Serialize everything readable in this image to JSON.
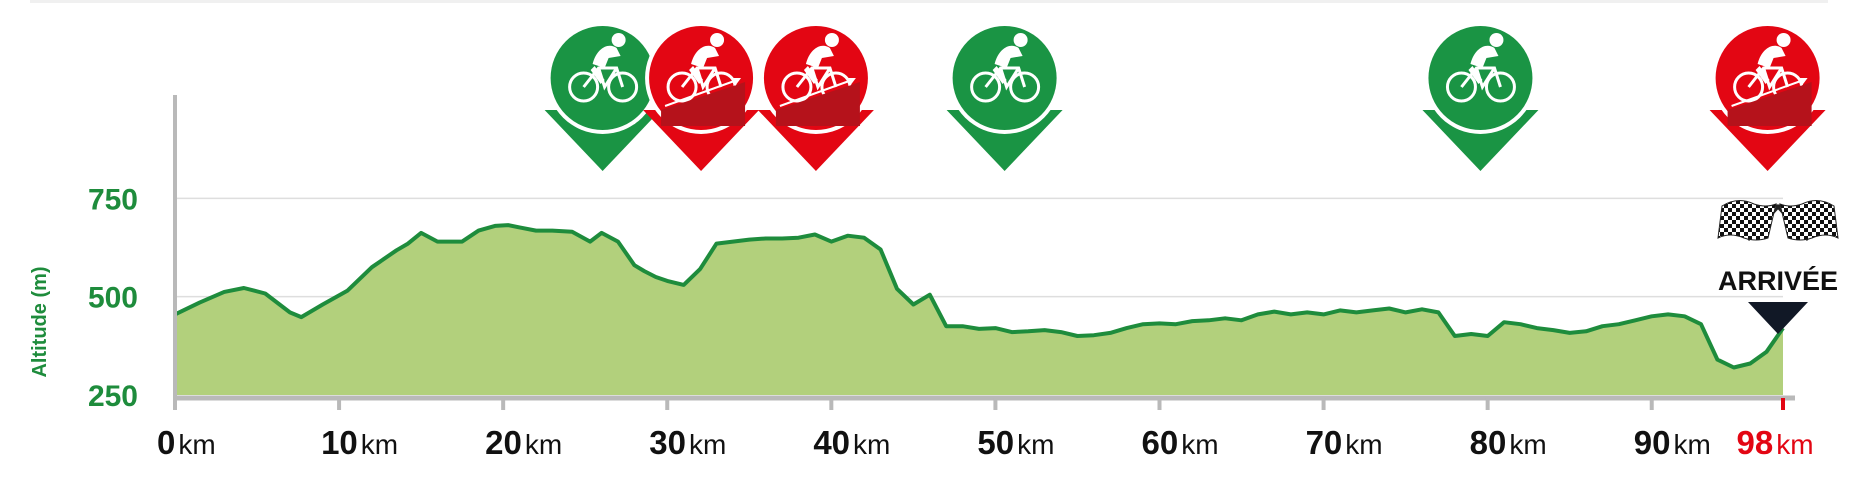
{
  "colors": {
    "profile_fill": "#b2d07c",
    "profile_line": "#1e8c3c",
    "axis_green": "#1e8c3c",
    "sprint_green": "#1a9444",
    "climb_red": "#e30613",
    "finish_red": "#e30613",
    "axis_gray": "#b9b9b9",
    "grid": "#dedede",
    "text_dark": "#111111"
  },
  "chart_data": {
    "type": "area",
    "title": "",
    "xlabel": "",
    "ylabel": "Altitude (m)",
    "x_unit": "km",
    "xlim": [
      0,
      98
    ],
    "ylim": [
      250,
      1000
    ],
    "yticks": [
      {
        "value": 250,
        "label": "250"
      },
      {
        "value": 500,
        "label": "500"
      },
      {
        "value": 750,
        "label": "750"
      }
    ],
    "xticks": [
      {
        "value": 0,
        "label": "0",
        "unit": "km",
        "finish": false
      },
      {
        "value": 10,
        "label": "10",
        "unit": "km",
        "finish": false
      },
      {
        "value": 20,
        "label": "20",
        "unit": "km",
        "finish": false
      },
      {
        "value": 30,
        "label": "30",
        "unit": "km",
        "finish": false
      },
      {
        "value": 40,
        "label": "40",
        "unit": "km",
        "finish": false
      },
      {
        "value": 50,
        "label": "50",
        "unit": "km",
        "finish": false
      },
      {
        "value": 60,
        "label": "60",
        "unit": "km",
        "finish": false
      },
      {
        "value": 70,
        "label": "70",
        "unit": "km",
        "finish": false
      },
      {
        "value": 80,
        "label": "80",
        "unit": "km",
        "finish": false
      },
      {
        "value": 90,
        "label": "90",
        "unit": "km",
        "finish": false
      },
      {
        "value": 98,
        "label": "98",
        "unit": "km",
        "finish": true
      }
    ],
    "grid": true,
    "series": [
      {
        "x": [
          0,
          1.5,
          3,
          4.2,
          5.5,
          7,
          7.7,
          9,
          10.5,
          12,
          13.5,
          14.2,
          15,
          16,
          17.5,
          18.5,
          19.5,
          20.3,
          21,
          22,
          23,
          24.2,
          25.3,
          26,
          27,
          28,
          28.6,
          29.3,
          30,
          31,
          32,
          33,
          34,
          35,
          36,
          37,
          38,
          39,
          40,
          41,
          42,
          43,
          44,
          45,
          46,
          47,
          48,
          49,
          50,
          51,
          52,
          53,
          54,
          55,
          56,
          57,
          58,
          59,
          60,
          61,
          62,
          63,
          64,
          65,
          66,
          67,
          68,
          69,
          70,
          71,
          72,
          73,
          74,
          75,
          76,
          77,
          78,
          79,
          80,
          81,
          82,
          83,
          84,
          85,
          86,
          87,
          88,
          89,
          90,
          91,
          92,
          93,
          94,
          95,
          96,
          97,
          98
        ],
        "y": [
          455,
          485,
          512,
          522,
          508,
          460,
          448,
          480,
          515,
          575,
          618,
          635,
          662,
          640,
          640,
          668,
          680,
          682,
          676,
          668,
          668,
          665,
          640,
          662,
          640,
          580,
          565,
          550,
          540,
          530,
          570,
          635,
          640,
          645,
          648,
          648,
          650,
          658,
          640,
          655,
          650,
          620,
          520,
          480,
          505,
          425,
          425,
          418,
          420,
          410,
          412,
          415,
          410,
          400,
          402,
          408,
          420,
          430,
          432,
          430,
          438,
          440,
          445,
          440,
          455,
          462,
          455,
          460,
          455,
          465,
          460,
          465,
          470,
          460,
          468,
          460,
          400,
          405,
          400,
          435,
          430,
          420,
          415,
          408,
          412,
          425,
          430,
          440,
          450,
          455,
          450,
          430,
          340,
          320,
          330,
          360,
          420
        ]
      }
    ],
    "markers": [
      {
        "type": "sprint",
        "km": 26,
        "color": "#1a9444",
        "icon": "cyclist-icon"
      },
      {
        "type": "climb",
        "km": 32,
        "color": "#e30613",
        "icon": "cyclist-climb-icon"
      },
      {
        "type": "climb",
        "km": 39,
        "color": "#e30613",
        "icon": "cyclist-climb-icon"
      },
      {
        "type": "sprint",
        "km": 50.5,
        "color": "#1a9444",
        "icon": "cyclist-icon"
      },
      {
        "type": "sprint",
        "km": 79.5,
        "color": "#1a9444",
        "icon": "cyclist-icon"
      },
      {
        "type": "climb",
        "km": 97,
        "color": "#e30613",
        "icon": "cyclist-climb-icon"
      }
    ],
    "finish": {
      "label": "ARRIVÉE",
      "icon": "checkered-flags-icon",
      "km": 98
    }
  }
}
